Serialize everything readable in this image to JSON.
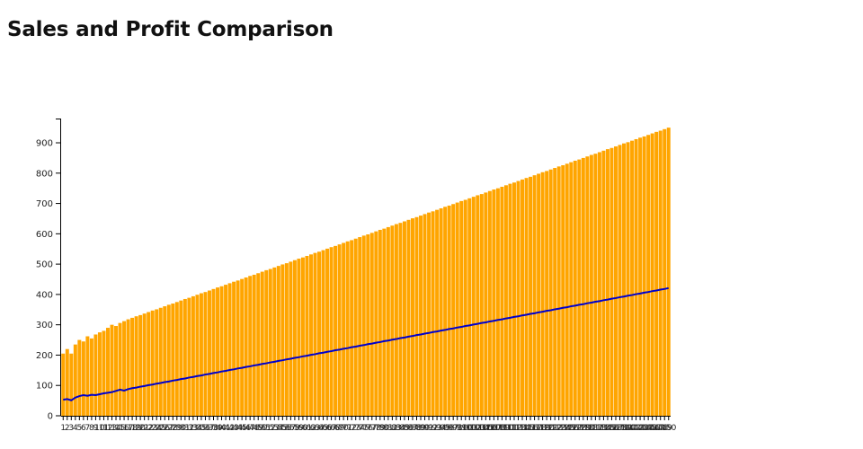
{
  "chart_data": {
    "type": "bar",
    "title": "Sales and Profit Comparison",
    "xlabel": "",
    "ylabel": "",
    "ylim": [
      0,
      980
    ],
    "yticks": [
      0,
      100,
      200,
      300,
      400,
      500,
      600,
      700,
      800,
      900
    ],
    "grid": false,
    "legend": "none",
    "colors": {
      "sales": "#FFA500",
      "profit": "#0000CD"
    },
    "x": {
      "start": 1,
      "end": 150,
      "step": 1
    },
    "series": [
      {
        "chart_type": "bar",
        "sales_first_values": [
          205,
          220,
          205,
          235,
          250,
          245,
          262,
          255,
          268,
          275,
          280,
          290,
          300,
          296,
          306,
          312
        ],
        "sales_trend": {
          "from_x": 17,
          "start_value": 318,
          "increment_per_step": 4.75
        }
      },
      {
        "chart_type": "line",
        "profit_first_values": [
          53,
          55,
          51,
          60,
          65,
          68,
          66,
          69,
          68,
          71,
          74,
          76,
          78,
          82,
          86,
          83
        ],
        "profit_trend": {
          "from_x": 17,
          "start_value": 88,
          "increment_per_step": 2.5
        }
      }
    ]
  }
}
